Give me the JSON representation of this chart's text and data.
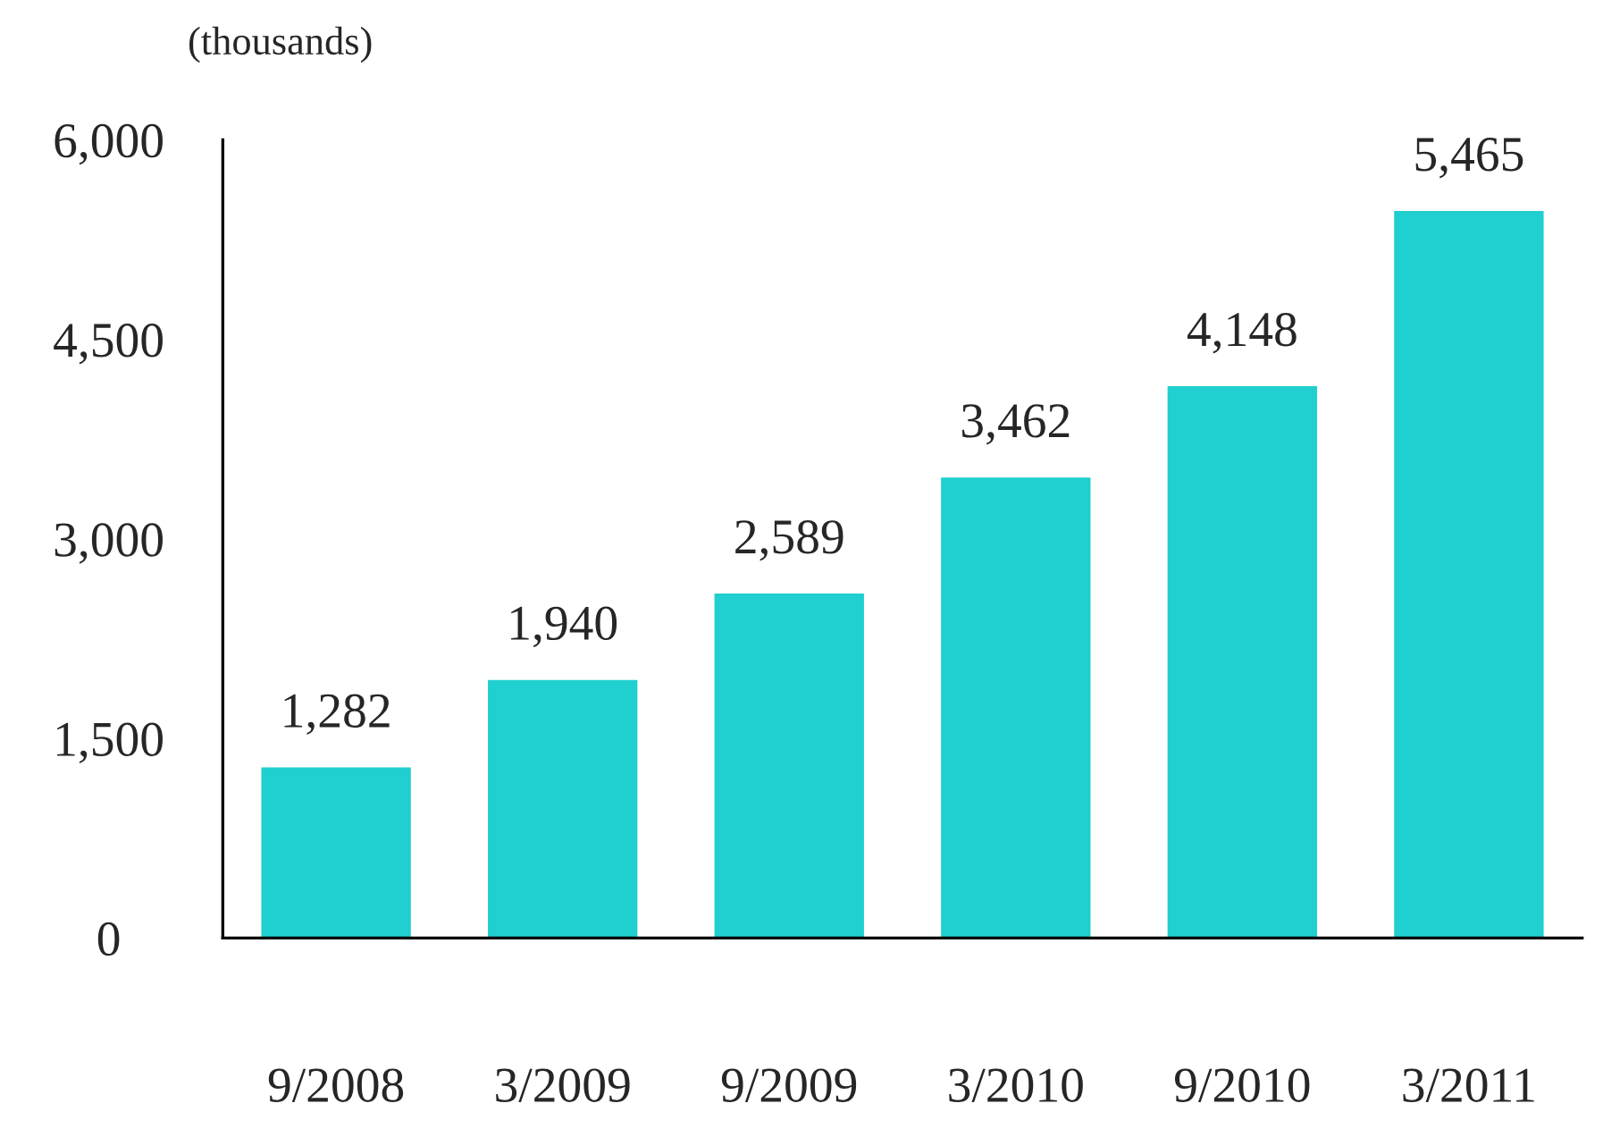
{
  "chart_data": {
    "type": "bar",
    "ylabel": "(thousands)",
    "categories": [
      "9/2008",
      "3/2009",
      "9/2009",
      "3/2010",
      "9/2010",
      "3/2011"
    ],
    "values": [
      1282,
      1940,
      2589,
      3462,
      4148,
      5465
    ],
    "value_labels": [
      "1,282",
      "1,940",
      "2,589",
      "3,462",
      "4,148",
      "5,465"
    ],
    "color": "#20cfcf",
    "ylim": [
      0,
      6000
    ],
    "yticks": [
      {
        "value": 0,
        "label": "0"
      },
      {
        "value": 1500,
        "label": "1,500"
      },
      {
        "value": 3000,
        "label": "3,000"
      },
      {
        "value": 4500,
        "label": "4,500"
      },
      {
        "value": 6000,
        "label": "6,000"
      }
    ],
    "grid": false,
    "legend": false
  }
}
